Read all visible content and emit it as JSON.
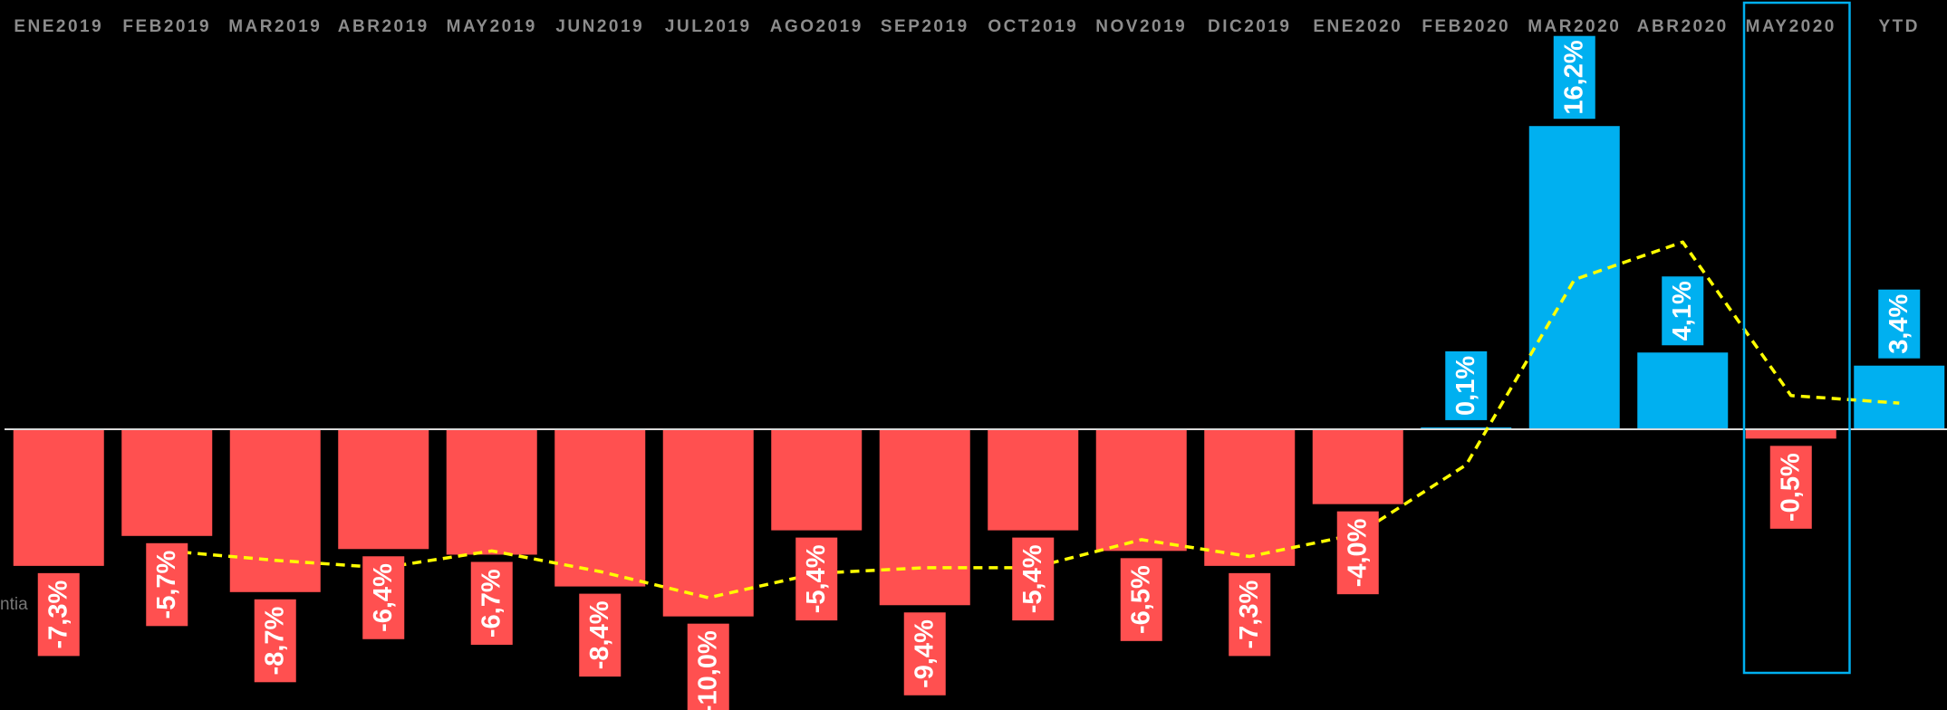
{
  "chart_data": {
    "type": "bar",
    "categories": [
      "ENE2019",
      "FEB2019",
      "MAR2019",
      "ABR2019",
      "MAY2019",
      "JUN2019",
      "JUL2019",
      "AGO2019",
      "SEP2019",
      "OCT2019",
      "NOV2019",
      "DIC2019",
      "ENE2020",
      "FEB2020",
      "MAR2020",
      "ABR2020",
      "MAY2020",
      "YTD"
    ],
    "series": [
      {
        "values": [
          -7.3,
          -5.7,
          -8.7,
          -6.4,
          -6.7,
          -8.4,
          -10.0,
          -5.4,
          -9.4,
          -5.4,
          -6.5,
          -7.3,
          -4.0,
          0.1,
          16.2,
          4.1,
          -0.5,
          3.4
        ],
        "labels": [
          "-7,3%",
          "-5,7%",
          "-8,7%",
          "-6,4%",
          "-6,7%",
          "-8,4%",
          "-10,0%",
          "-5,4%",
          "-9,4%",
          "-5,4%",
          "-6,5%",
          "-7,3%",
          "-4,0%",
          "0,1%",
          "16,2%",
          "4,1%",
          "-0,5%",
          "3,4%"
        ]
      },
      {
        "type": "line",
        "style": "dashed",
        "values": [
          null,
          -6.5,
          -7.0,
          -7.4,
          -6.5,
          -7.6,
          -9.0,
          -7.7,
          -7.4,
          -7.4,
          -5.9,
          -6.8,
          -5.6,
          -1.9,
          8.0,
          10.0,
          1.8,
          1.4
        ]
      }
    ],
    "ylim": [
      -15.0,
      21.0
    ],
    "grid": false,
    "legend": "none",
    "highlighted_category": "MAY2020",
    "side_text": "ntia",
    "colors": {
      "positive": "#00b0f0",
      "negative": "#ff5050",
      "line": "#ffff00",
      "baseline": "#d9d9d9",
      "highlight_box": "#00b0f0",
      "category_text": "#8c8c8c",
      "label_text": "#ffffff",
      "background": "#000000"
    }
  }
}
